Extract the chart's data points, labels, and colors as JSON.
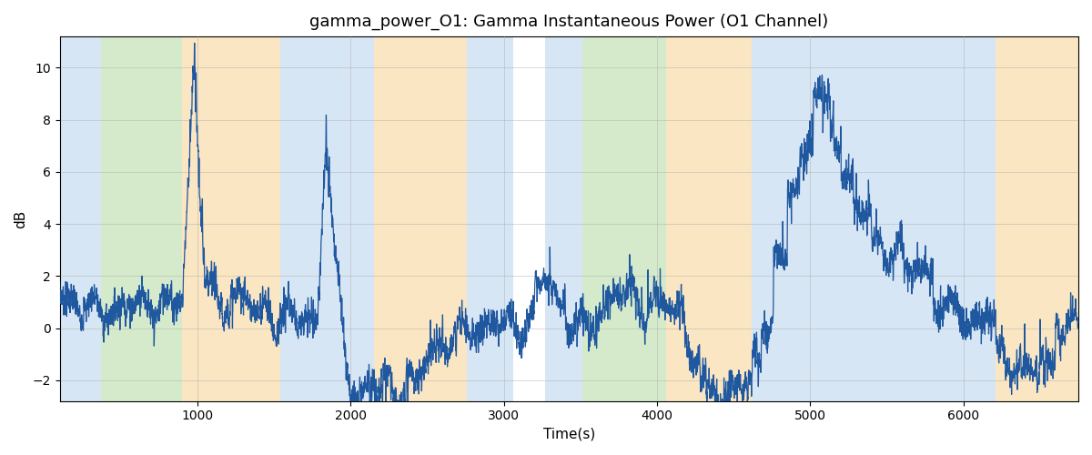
{
  "title": "gamma_power_O1: Gamma Instantaneous Power (O1 Channel)",
  "xlabel": "Time(s)",
  "ylabel": "dB",
  "xlim": [
    100,
    6750
  ],
  "ylim": [
    -2.8,
    11.2
  ],
  "line_color": "#2058a0",
  "line_width": 0.9,
  "background_color": "#ffffff",
  "grid_color": "#aaaaaa",
  "grid_alpha": 0.6,
  "shaded_regions": [
    {
      "xmin": 100,
      "xmax": 370,
      "color": "#a8c8e8",
      "alpha": 0.45
    },
    {
      "xmin": 370,
      "xmax": 900,
      "color": "#90c878",
      "alpha": 0.38
    },
    {
      "xmin": 900,
      "xmax": 1540,
      "color": "#f5c878",
      "alpha": 0.45
    },
    {
      "xmin": 1540,
      "xmax": 2150,
      "color": "#a8c8e8",
      "alpha": 0.45
    },
    {
      "xmin": 2150,
      "xmax": 2760,
      "color": "#f5c878",
      "alpha": 0.45
    },
    {
      "xmin": 2760,
      "xmax": 3060,
      "color": "#a8c8e8",
      "alpha": 0.45
    },
    {
      "xmin": 3060,
      "xmax": 3270,
      "color": "#ffffff",
      "alpha": 1.0
    },
    {
      "xmin": 3270,
      "xmax": 3510,
      "color": "#a8c8e8",
      "alpha": 0.45
    },
    {
      "xmin": 3510,
      "xmax": 4060,
      "color": "#90c878",
      "alpha": 0.38
    },
    {
      "xmin": 4060,
      "xmax": 4620,
      "color": "#f5c878",
      "alpha": 0.45
    },
    {
      "xmin": 4620,
      "xmax": 6210,
      "color": "#a8c8e8",
      "alpha": 0.45
    },
    {
      "xmin": 6210,
      "xmax": 6750,
      "color": "#f5c878",
      "alpha": 0.45
    }
  ],
  "xticks": [
    1000,
    2000,
    3000,
    4000,
    5000,
    6000
  ],
  "yticks": [
    -2,
    0,
    2,
    4,
    6,
    8,
    10
  ]
}
